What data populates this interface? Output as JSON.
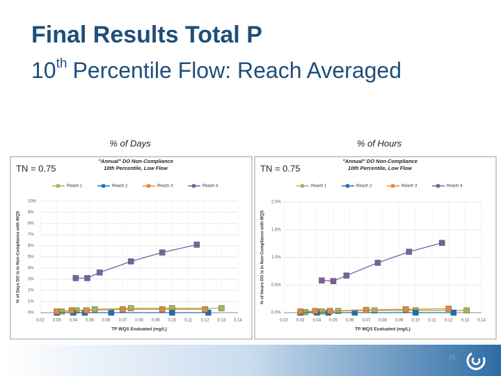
{
  "slide": {
    "title": "Final Results Total P",
    "subtitle": {
      "number": "10",
      "sup": "th",
      "rest": "Percentile Flow: Reach Averaged"
    },
    "page_number": "26"
  },
  "chart_data": [
    {
      "type": "line",
      "heading": "% of Days",
      "note": "TN = 0.75",
      "title": [
        "\"Annual\" DO Non-Compliance",
        "10th Percentile, Low Flow"
      ],
      "x_label": "TP WQS Evaluated (mg/L)",
      "y_label": "% of Days DO is in Non-Compliance with WQS",
      "xlim": [
        0.02,
        0.14
      ],
      "xticks": [
        0.02,
        0.03,
        0.04,
        0.05,
        0.06,
        0.07,
        0.08,
        0.09,
        {
          "value": 0.1,
          "label": "0.10"
        },
        0.11,
        0.12,
        0.13,
        0.14
      ],
      "ylim": [
        0,
        10
      ],
      "yticks": [
        {
          "value": 0,
          "label": "0%"
        },
        {
          "value": 1,
          "label": "1%"
        },
        {
          "value": 2,
          "label": "2%"
        },
        {
          "value": 3,
          "label": "3%"
        },
        {
          "value": 4,
          "label": "4%"
        },
        {
          "value": 5,
          "label": "5%"
        },
        {
          "value": 6,
          "label": "6%"
        },
        {
          "value": 7,
          "label": "7%"
        },
        {
          "value": 8,
          "label": "8%"
        },
        {
          "value": 9,
          "label": "9%"
        },
        {
          "value": 10,
          "label": "10%"
        }
      ],
      "grid": true,
      "series": [
        {
          "name": "Reach 1",
          "color": "#9bbb59",
          "x": [
            0.033,
            0.042,
            0.053,
            0.075,
            0.1,
            0.13
          ],
          "values": [
            0.1,
            0.2,
            0.3,
            0.4,
            0.4,
            0.4
          ]
        },
        {
          "name": "Reach 2",
          "color": "#1f6fb2",
          "x": [
            0.03,
            0.04,
            0.047,
            0.063,
            0.1,
            0.122
          ],
          "values": [
            0,
            0,
            0,
            0,
            0,
            0
          ]
        },
        {
          "name": "Reach 3",
          "color": "#e08a3c",
          "x": [
            0.03,
            0.039,
            0.048,
            0.07,
            0.094,
            0.12
          ],
          "values": [
            0.1,
            0.2,
            0.2,
            0.3,
            0.3,
            0.3
          ]
        },
        {
          "name": "Reach 4",
          "color": "#7a5fa0",
          "x": [
            0.0415,
            0.0485,
            0.056,
            0.075,
            0.094,
            0.115
          ],
          "values": [
            3.1,
            3.1,
            3.6,
            4.6,
            5.4,
            6.1
          ]
        }
      ]
    },
    {
      "type": "line",
      "heading": "% of Hours",
      "note": "TN = 0.75",
      "title": [
        "\"Annual\" DO Non-Compliance",
        "10th Percentile, Low Flow"
      ],
      "x_label": "TP WQS Evaluated (mg/L)",
      "y_label": "% of Hours DO is in Non-Compliance with WQS",
      "xlim": [
        0.02,
        0.14
      ],
      "xticks": [
        0.02,
        0.03,
        0.04,
        0.05,
        0.06,
        0.07,
        0.08,
        0.09,
        {
          "value": 0.1,
          "label": "0.10"
        },
        0.11,
        0.12,
        0.13,
        0.14
      ],
      "ylim": [
        0,
        2
      ],
      "yticks": [
        {
          "value": 0,
          "label": "0.0%"
        },
        {
          "value": 0.5,
          "label": "0.5%"
        },
        {
          "value": 1,
          "label": "1.0%"
        },
        {
          "value": 1.5,
          "label": "1.5%"
        },
        {
          "value": 2,
          "label": "2.0%"
        }
      ],
      "grid": true,
      "series": [
        {
          "name": "Reach 1",
          "color": "#9bbb59",
          "x": [
            0.033,
            0.043,
            0.053,
            0.075,
            0.1,
            0.131
          ],
          "values": [
            0.01,
            0.02,
            0.03,
            0.04,
            0.04,
            0.04
          ]
        },
        {
          "name": "Reach 2",
          "color": "#1f6fb2",
          "x": [
            0.03,
            0.04,
            0.047,
            0.063,
            0.1,
            0.123
          ],
          "values": [
            0,
            0,
            0,
            0,
            0,
            0
          ]
        },
        {
          "name": "Reach 3",
          "color": "#e08a3c",
          "x": [
            0.03,
            0.039,
            0.048,
            0.07,
            0.094,
            0.12
          ],
          "values": [
            0.02,
            0.03,
            0.03,
            0.05,
            0.06,
            0.07
          ]
        },
        {
          "name": "Reach 4",
          "color": "#7a5fa0",
          "x": [
            0.043,
            0.05,
            0.058,
            0.077,
            0.096,
            0.116
          ],
          "values": [
            0.58,
            0.57,
            0.67,
            0.9,
            1.1,
            1.26
          ]
        }
      ]
    }
  ]
}
